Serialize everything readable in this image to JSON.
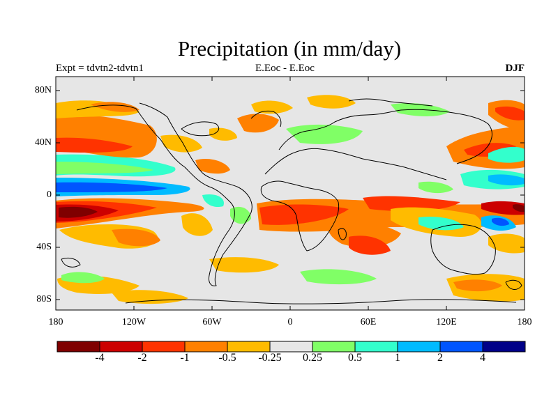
{
  "title": "Precipitation (in mm/day)",
  "experiment_label": "Expt = tdvtn2-tdvtn1",
  "comparison_label": "E.Eoc - E.Eoc",
  "season_label": "DJF",
  "lat_ticks": [
    "80N",
    "40N",
    "0",
    "40S",
    "80S"
  ],
  "lon_ticks": [
    "180",
    "120W",
    "60W",
    "0",
    "60E",
    "120E",
    "180"
  ],
  "colorbar": {
    "colors": [
      "#7f0000",
      "#cc0000",
      "#ff3300",
      "#ff8000",
      "#ffbb00",
      "#e6e6e6",
      "#80ff66",
      "#33ffcc",
      "#00bbff",
      "#0055ff",
      "#000088"
    ],
    "labels": [
      "-4",
      "-2",
      "-1",
      "-0.5",
      "-0.25",
      "0.25",
      "0.5",
      "1",
      "2",
      "4"
    ]
  },
  "colors": {
    "land_line": "#000000",
    "neutral_fill": "#e6e6e6"
  }
}
